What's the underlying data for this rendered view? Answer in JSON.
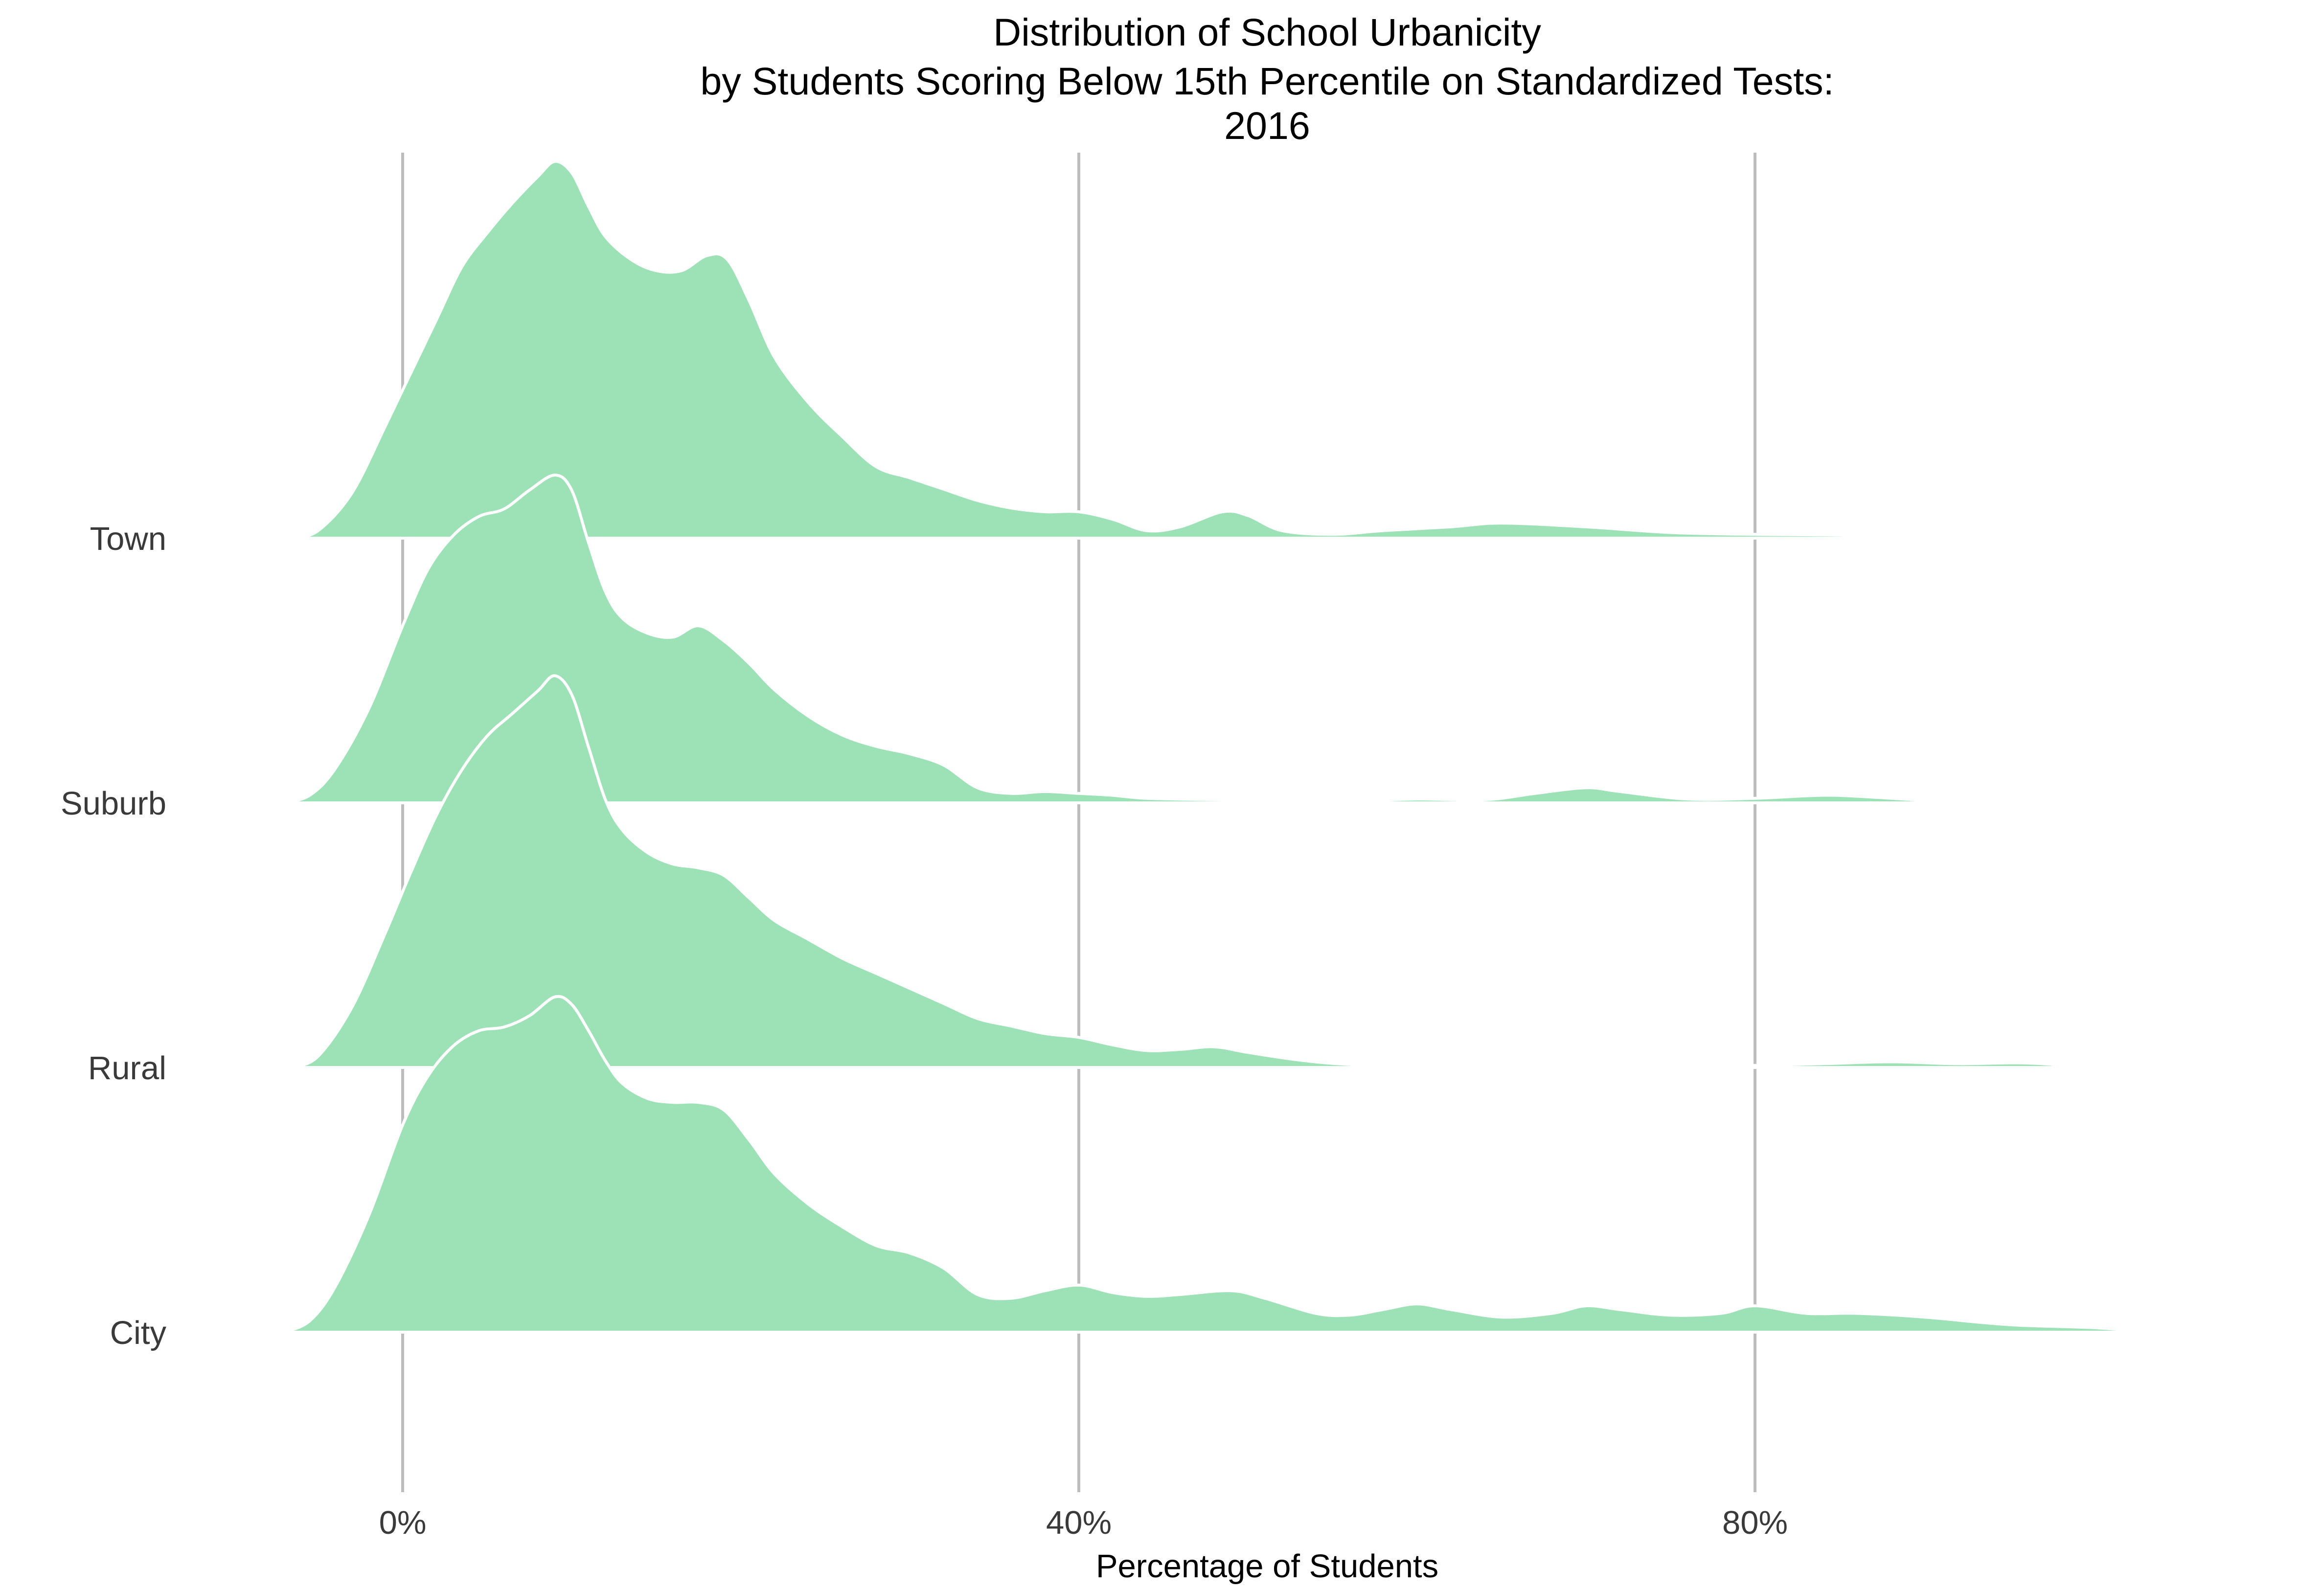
{
  "chart_data": {
    "type": "area",
    "title_lines": [
      "Distribution of School Urbanicity",
      "by Students Scoring Below 15th Percentile on Standardized Tests:",
      "2016"
    ],
    "xlabel": "Percentage of Students",
    "ylabel": "",
    "x_ticks": [
      {
        "value": 0,
        "label": "0%"
      },
      {
        "value": 40,
        "label": "40%"
      },
      {
        "value": 80,
        "label": "80%"
      }
    ],
    "xlim": [
      -7,
      105
    ],
    "grid": "vertical",
    "fill_color": "#9de1b7",
    "edge_color": "#ffffff",
    "density_max": 1.0,
    "series": [
      {
        "name": "Town",
        "points": [
          [
            -6.5,
            0
          ],
          [
            -5,
            0.02
          ],
          [
            -3,
            0.12
          ],
          [
            -1,
            0.3
          ],
          [
            0.5,
            0.44
          ],
          [
            2,
            0.58
          ],
          [
            3.5,
            0.72
          ],
          [
            5,
            0.81
          ],
          [
            6.5,
            0.89
          ],
          [
            8,
            0.96
          ],
          [
            9,
            1.0
          ],
          [
            10,
            0.97
          ],
          [
            11,
            0.88
          ],
          [
            12,
            0.8
          ],
          [
            13.5,
            0.74
          ],
          [
            15,
            0.71
          ],
          [
            16.5,
            0.71
          ],
          [
            18,
            0.75
          ],
          [
            19.2,
            0.74
          ],
          [
            20.5,
            0.63
          ],
          [
            22,
            0.48
          ],
          [
            24,
            0.36
          ],
          [
            26,
            0.27
          ],
          [
            28,
            0.19
          ],
          [
            30,
            0.16
          ],
          [
            32,
            0.13
          ],
          [
            34,
            0.1
          ],
          [
            36,
            0.08
          ],
          [
            38,
            0.07
          ],
          [
            40,
            0.07
          ],
          [
            42,
            0.05
          ],
          [
            44,
            0.02
          ],
          [
            46,
            0.03
          ],
          [
            48.5,
            0.07
          ],
          [
            50,
            0.06
          ],
          [
            52,
            0.02
          ],
          [
            55,
            0.01
          ],
          [
            58,
            0.02
          ],
          [
            62,
            0.03
          ],
          [
            65,
            0.04
          ],
          [
            70,
            0.03
          ],
          [
            75,
            0.015
          ],
          [
            80,
            0.01
          ],
          [
            85,
            0.008
          ],
          [
            88,
            0
          ]
        ]
      },
      {
        "name": "Suburb",
        "points": [
          [
            -7,
            0
          ],
          [
            -5.5,
            0.02
          ],
          [
            -4,
            0.09
          ],
          [
            -2,
            0.25
          ],
          [
            0,
            0.47
          ],
          [
            1.5,
            0.62
          ],
          [
            3,
            0.71
          ],
          [
            4.5,
            0.76
          ],
          [
            6,
            0.78
          ],
          [
            7.5,
            0.83
          ],
          [
            9,
            0.87
          ],
          [
            10,
            0.83
          ],
          [
            11,
            0.69
          ],
          [
            12,
            0.56
          ],
          [
            13,
            0.49
          ],
          [
            14.5,
            0.45
          ],
          [
            16,
            0.44
          ],
          [
            17.5,
            0.47
          ],
          [
            19,
            0.43
          ],
          [
            20.5,
            0.37
          ],
          [
            22,
            0.3
          ],
          [
            24,
            0.23
          ],
          [
            26,
            0.18
          ],
          [
            28,
            0.15
          ],
          [
            30,
            0.13
          ],
          [
            32,
            0.1
          ],
          [
            34,
            0.04
          ],
          [
            36,
            0.025
          ],
          [
            38,
            0.03
          ],
          [
            40,
            0.025
          ],
          [
            42,
            0.02
          ],
          [
            44,
            0.012
          ],
          [
            48,
            0.008
          ],
          [
            52,
            0.006
          ],
          [
            56,
            0.004
          ],
          [
            60,
            0.01
          ],
          [
            64,
            0.008
          ],
          [
            67,
            0.025
          ],
          [
            70,
            0.04
          ],
          [
            72,
            0.03
          ],
          [
            76,
            0.01
          ],
          [
            80,
            0.012
          ],
          [
            84,
            0.02
          ],
          [
            87,
            0.015
          ],
          [
            92,
            0
          ]
        ]
      },
      {
        "name": "Rural",
        "points": [
          [
            -6.5,
            0
          ],
          [
            -5,
            0.03
          ],
          [
            -3,
            0.16
          ],
          [
            -1,
            0.36
          ],
          [
            0.5,
            0.52
          ],
          [
            2,
            0.67
          ],
          [
            3.5,
            0.79
          ],
          [
            5,
            0.88
          ],
          [
            6.5,
            0.94
          ],
          [
            8,
            1.0
          ],
          [
            9,
            1.04
          ],
          [
            10,
            0.99
          ],
          [
            11,
            0.85
          ],
          [
            12,
            0.71
          ],
          [
            13,
            0.63
          ],
          [
            14.5,
            0.57
          ],
          [
            16,
            0.54
          ],
          [
            17.5,
            0.53
          ],
          [
            19,
            0.51
          ],
          [
            20.5,
            0.45
          ],
          [
            22,
            0.39
          ],
          [
            24,
            0.34
          ],
          [
            26,
            0.29
          ],
          [
            28,
            0.25
          ],
          [
            30,
            0.21
          ],
          [
            32,
            0.17
          ],
          [
            34,
            0.13
          ],
          [
            36,
            0.11
          ],
          [
            38,
            0.09
          ],
          [
            40,
            0.08
          ],
          [
            42,
            0.06
          ],
          [
            44,
            0.045
          ],
          [
            46,
            0.048
          ],
          [
            48,
            0.055
          ],
          [
            50,
            0.04
          ],
          [
            53,
            0.02
          ],
          [
            56,
            0.008
          ],
          [
            60,
            0.005
          ],
          [
            66,
            0.006
          ],
          [
            72,
            0.004
          ],
          [
            78,
            0.004
          ],
          [
            84,
            0.01
          ],
          [
            88,
            0.015
          ],
          [
            92,
            0.01
          ],
          [
            96,
            0.012
          ],
          [
            100,
            0
          ]
        ]
      },
      {
        "name": "City",
        "points": [
          [
            -7,
            0
          ],
          [
            -5.5,
            0.03
          ],
          [
            -4,
            0.12
          ],
          [
            -2,
            0.31
          ],
          [
            0,
            0.55
          ],
          [
            1.5,
            0.68
          ],
          [
            3,
            0.76
          ],
          [
            4.5,
            0.8
          ],
          [
            6,
            0.81
          ],
          [
            7.5,
            0.84
          ],
          [
            9,
            0.89
          ],
          [
            10,
            0.87
          ],
          [
            11,
            0.8
          ],
          [
            12,
            0.72
          ],
          [
            13,
            0.66
          ],
          [
            14.5,
            0.62
          ],
          [
            16,
            0.61
          ],
          [
            17.5,
            0.61
          ],
          [
            19,
            0.59
          ],
          [
            20.5,
            0.51
          ],
          [
            22,
            0.42
          ],
          [
            24,
            0.34
          ],
          [
            26,
            0.28
          ],
          [
            28,
            0.23
          ],
          [
            30,
            0.21
          ],
          [
            32,
            0.17
          ],
          [
            34,
            0.1
          ],
          [
            36,
            0.09
          ],
          [
            38,
            0.11
          ],
          [
            40,
            0.125
          ],
          [
            42,
            0.105
          ],
          [
            44,
            0.095
          ],
          [
            46,
            0.1
          ],
          [
            49,
            0.11
          ],
          [
            51,
            0.09
          ],
          [
            54,
            0.05
          ],
          [
            56,
            0.045
          ],
          [
            58,
            0.06
          ],
          [
            60,
            0.075
          ],
          [
            62,
            0.06
          ],
          [
            65,
            0.04
          ],
          [
            68,
            0.05
          ],
          [
            70,
            0.07
          ],
          [
            72,
            0.06
          ],
          [
            75,
            0.045
          ],
          [
            78,
            0.05
          ],
          [
            80,
            0.07
          ],
          [
            83,
            0.05
          ],
          [
            86,
            0.05
          ],
          [
            90,
            0.04
          ],
          [
            95,
            0.02
          ],
          [
            100,
            0.012
          ],
          [
            103.5,
            0
          ]
        ]
      }
    ]
  }
}
